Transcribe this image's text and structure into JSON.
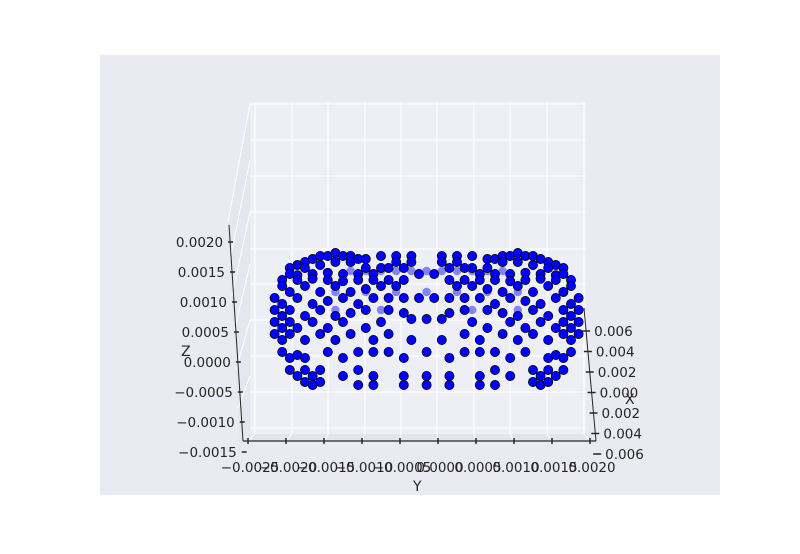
{
  "chart_data": {
    "type": "scatter",
    "projection": "3d",
    "title": "",
    "xlabel": "X",
    "ylabel": "Y",
    "zlabel": "Z",
    "x_ticks": [
      "0.006",
      "0.004",
      "0.002",
      "0.000",
      "0.002",
      "0.004",
      "0.006"
    ],
    "y_ticks": [
      "−0.0025",
      "−0.0020",
      "−0.0015",
      "−0.0010",
      "−0.0005",
      "0.0000",
      "0.0005",
      "0.0010",
      "0.0015",
      "0.0020"
    ],
    "z_ticks": [
      "−0.0015",
      "−0.0010",
      "−0.0005",
      "0.0000",
      "0.0005",
      "0.0010",
      "0.0015",
      "0.0020"
    ],
    "xlim": [
      -0.006,
      0.006
    ],
    "ylim": [
      -0.0025,
      0.002
    ],
    "zlim": [
      -0.0015,
      0.0022
    ],
    "grid": true,
    "background": "#eaeaf2",
    "marker_color": "#0000ff",
    "marker_edge": "#000000",
    "series": [
      {
        "points_yz": [
          [
            -0.0017,
            0.00165
          ],
          [
            -0.0016,
            0.0017
          ],
          [
            -0.0015,
            0.00175
          ],
          [
            -0.0014,
            0.0018
          ],
          [
            -0.0013,
            0.0018
          ],
          [
            -0.0012,
            0.00185
          ],
          [
            -0.0011,
            0.0018
          ],
          [
            -0.001,
            0.0018
          ],
          [
            -0.0009,
            0.00175
          ],
          [
            -0.0008,
            0.00175
          ],
          [
            -0.0006,
            0.0018
          ],
          [
            -0.0004,
            0.0018
          ],
          [
            -0.0002,
            0.0018
          ],
          [
            0.0002,
            0.0018
          ],
          [
            0.0004,
            0.0018
          ],
          [
            0.0006,
            0.0018
          ],
          [
            0.0008,
            0.00175
          ],
          [
            0.0009,
            0.00175
          ],
          [
            0.001,
            0.0018
          ],
          [
            0.0011,
            0.0018
          ],
          [
            0.0012,
            0.00185
          ],
          [
            0.0013,
            0.0018
          ],
          [
            0.0014,
            0.0018
          ],
          [
            0.0015,
            0.00175
          ],
          [
            0.0016,
            0.0017
          ],
          [
            0.0017,
            0.00165
          ],
          [
            -0.0018,
            0.0016
          ],
          [
            -0.0016,
            0.0016
          ],
          [
            -0.0014,
            0.00165
          ],
          [
            -0.0012,
            0.0017
          ],
          [
            -0.001,
            0.0017
          ],
          [
            -0.0008,
            0.0016
          ],
          [
            -0.0006,
            0.0016
          ],
          [
            -0.0004,
            0.0017
          ],
          [
            -0.0002,
            0.0017
          ],
          [
            0.0002,
            0.0017
          ],
          [
            0.0004,
            0.0017
          ],
          [
            0.0006,
            0.0016
          ],
          [
            0.0008,
            0.0016
          ],
          [
            0.001,
            0.0017
          ],
          [
            0.0012,
            0.0017
          ],
          [
            0.0014,
            0.00165
          ],
          [
            0.0016,
            0.0016
          ],
          [
            0.0018,
            0.0016
          ],
          [
            -0.0018,
            0.0015
          ],
          [
            -0.0017,
            0.00148
          ],
          [
            -0.0015,
            0.0015
          ],
          [
            -0.0013,
            0.00152
          ],
          [
            -0.0011,
            0.0015
          ],
          [
            -0.0009,
            0.0015
          ],
          [
            -0.0007,
            0.0015
          ],
          [
            -0.0005,
            0.0016
          ],
          [
            -0.0003,
            0.0016
          ],
          [
            0.0003,
            0.0016
          ],
          [
            0.0005,
            0.0016
          ],
          [
            0.0007,
            0.0015
          ],
          [
            0.0009,
            0.0015
          ],
          [
            0.0011,
            0.0015
          ],
          [
            0.0013,
            0.00152
          ],
          [
            0.0015,
            0.0015
          ],
          [
            0.0017,
            0.00148
          ],
          [
            0.0018,
            0.0015
          ],
          [
            -0.0019,
            0.0014
          ],
          [
            -0.0017,
            0.0014
          ],
          [
            -0.0015,
            0.00142
          ],
          [
            -0.0013,
            0.0014
          ],
          [
            -0.0011,
            0.00138
          ],
          [
            -0.0009,
            0.0014
          ],
          [
            -0.0007,
            0.0014
          ],
          [
            -0.0005,
            0.0014
          ],
          [
            -0.0003,
            0.0014
          ],
          [
            -0.0001,
            0.0015
          ],
          [
            0.0001,
            0.0015
          ],
          [
            0.0003,
            0.0014
          ],
          [
            0.0005,
            0.0014
          ],
          [
            0.0007,
            0.0014
          ],
          [
            0.0009,
            0.0014
          ],
          [
            0.0011,
            0.00138
          ],
          [
            0.0013,
            0.0014
          ],
          [
            0.0015,
            0.00142
          ],
          [
            0.0017,
            0.0014
          ],
          [
            0.0019,
            0.0014
          ],
          [
            -0.0019,
            0.0013
          ],
          [
            -0.0018,
            0.0012
          ],
          [
            -0.0016,
            0.0013
          ],
          [
            -0.0014,
            0.0012
          ],
          [
            -0.0012,
            0.0013
          ],
          [
            -0.001,
            0.0012
          ],
          [
            -0.0008,
            0.00125
          ],
          [
            -0.0006,
            0.0013
          ],
          [
            -0.0004,
            0.0013
          ],
          [
            0.0004,
            0.0013
          ],
          [
            0.0006,
            0.0013
          ],
          [
            0.0008,
            0.00125
          ],
          [
            0.001,
            0.0012
          ],
          [
            0.0012,
            0.0013
          ],
          [
            0.0014,
            0.0012
          ],
          [
            0.0016,
            0.0013
          ],
          [
            0.0018,
            0.0012
          ],
          [
            0.0019,
            0.0013
          ],
          [
            -0.002,
            0.0011
          ],
          [
            -0.0019,
            0.001
          ],
          [
            -0.0017,
            0.0011
          ],
          [
            -0.0015,
            0.001
          ],
          [
            -0.0013,
            0.00105
          ],
          [
            -0.0011,
            0.0011
          ],
          [
            -0.0009,
            0.001
          ],
          [
            -0.0007,
            0.0011
          ],
          [
            -0.0005,
            0.0011
          ],
          [
            -0.0003,
            0.0011
          ],
          [
            -0.0001,
            0.0011
          ],
          [
            0.0001,
            0.0011
          ],
          [
            0.0003,
            0.0011
          ],
          [
            0.0005,
            0.0011
          ],
          [
            0.0007,
            0.0011
          ],
          [
            0.0009,
            0.001
          ],
          [
            0.0011,
            0.0011
          ],
          [
            0.0013,
            0.00105
          ],
          [
            0.0015,
            0.001
          ],
          [
            0.0017,
            0.0011
          ],
          [
            0.0019,
            0.001
          ],
          [
            0.002,
            0.0011
          ],
          [
            -0.002,
            0.0009
          ],
          [
            -0.0019,
            0.0008
          ],
          [
            -0.0018,
            0.0009
          ],
          [
            -0.0016,
            0.0008
          ],
          [
            -0.0014,
            0.0009
          ],
          [
            -0.0012,
            0.0008
          ],
          [
            -0.001,
            0.00085
          ],
          [
            -0.0008,
            0.0009
          ],
          [
            -0.0005,
            0.0009
          ],
          [
            -0.0003,
            0.00085
          ],
          [
            0.0003,
            0.00085
          ],
          [
            0.0005,
            0.0009
          ],
          [
            0.0008,
            0.0009
          ],
          [
            0.001,
            0.00085
          ],
          [
            0.0012,
            0.0008
          ],
          [
            0.0014,
            0.0009
          ],
          [
            0.0016,
            0.0008
          ],
          [
            0.0018,
            0.0009
          ],
          [
            0.0019,
            0.0008
          ],
          [
            0.002,
            0.0009
          ],
          [
            -0.002,
            0.0007
          ],
          [
            -0.0019,
            0.0006
          ],
          [
            -0.0018,
            0.0007
          ],
          [
            -0.0017,
            0.0006
          ],
          [
            -0.0015,
            0.0007
          ],
          [
            -0.0013,
            0.0006
          ],
          [
            -0.0011,
            0.0007
          ],
          [
            -0.0008,
            0.0006
          ],
          [
            -0.0006,
            0.0007
          ],
          [
            -0.0002,
            0.00075
          ],
          [
            0.0,
            0.00075
          ],
          [
            0.0002,
            0.00075
          ],
          [
            0.0006,
            0.0007
          ],
          [
            0.0008,
            0.0006
          ],
          [
            0.0011,
            0.0007
          ],
          [
            0.0013,
            0.0006
          ],
          [
            0.0015,
            0.0007
          ],
          [
            0.0017,
            0.0006
          ],
          [
            0.0018,
            0.0007
          ],
          [
            0.0019,
            0.0006
          ],
          [
            0.002,
            0.0007
          ],
          [
            -0.002,
            0.0005
          ],
          [
            -0.0019,
            0.0004
          ],
          [
            -0.0018,
            0.0005
          ],
          [
            -0.0016,
            0.0004
          ],
          [
            -0.0014,
            0.0005
          ],
          [
            -0.0012,
            0.0004
          ],
          [
            -0.001,
            0.0005
          ],
          [
            -0.0007,
            0.0004
          ],
          [
            -0.0005,
            0.0005
          ],
          [
            -0.0002,
            0.0004
          ],
          [
            0.0002,
            0.0004
          ],
          [
            0.0005,
            0.0005
          ],
          [
            0.0007,
            0.0004
          ],
          [
            0.001,
            0.0005
          ],
          [
            0.0012,
            0.0004
          ],
          [
            0.0014,
            0.0005
          ],
          [
            0.0016,
            0.0004
          ],
          [
            0.0018,
            0.0005
          ],
          [
            0.0019,
            0.0004
          ],
          [
            0.002,
            0.0005
          ],
          [
            -0.0019,
            0.0002
          ],
          [
            -0.0018,
            0.0001
          ],
          [
            -0.0017,
            0.00015
          ],
          [
            -0.0016,
            0.0001
          ],
          [
            -0.0013,
            0.0002
          ],
          [
            -0.0011,
            0.0001
          ],
          [
            -0.0009,
            0.0002
          ],
          [
            -0.0007,
            0.0002
          ],
          [
            -0.0005,
            0.0002
          ],
          [
            -0.0003,
            0.0001
          ],
          [
            0.0,
            0.0002
          ],
          [
            0.0003,
            0.0001
          ],
          [
            0.0005,
            0.0002
          ],
          [
            0.0007,
            0.0002
          ],
          [
            0.0009,
            0.0002
          ],
          [
            0.0011,
            0.0001
          ],
          [
            0.0013,
            0.0002
          ],
          [
            0.0016,
            0.0001
          ],
          [
            0.0017,
            0.00015
          ],
          [
            0.0018,
            0.0001
          ],
          [
            0.0019,
            0.0002
          ],
          [
            -0.0018,
            -0.0001
          ],
          [
            -0.0017,
            -0.0002
          ],
          [
            -0.0016,
            -0.0001
          ],
          [
            -0.0015,
            -0.0002
          ],
          [
            -0.0014,
            -0.0001
          ],
          [
            -0.0011,
            -0.0002
          ],
          [
            -0.0009,
            -0.0001
          ],
          [
            -0.0007,
            -0.0002
          ],
          [
            -0.0003,
            -0.0002
          ],
          [
            0.0,
            -0.0002
          ],
          [
            0.0003,
            -0.0002
          ],
          [
            0.0007,
            -0.0002
          ],
          [
            0.0009,
            -0.0001
          ],
          [
            0.0011,
            -0.0002
          ],
          [
            0.0014,
            -0.0001
          ],
          [
            0.0015,
            -0.0002
          ],
          [
            0.0016,
            -0.0001
          ],
          [
            0.0017,
            -0.0002
          ],
          [
            0.0018,
            -0.0001
          ],
          [
            -0.0016,
            -0.0003
          ],
          [
            -0.0015,
            -0.00035
          ],
          [
            -0.0014,
            -0.0003
          ],
          [
            -0.0009,
            -0.00035
          ],
          [
            -0.0007,
            -0.00035
          ],
          [
            -0.0003,
            -0.00035
          ],
          [
            0.0,
            -0.00035
          ],
          [
            0.0003,
            -0.00035
          ],
          [
            0.0007,
            -0.00035
          ],
          [
            0.0009,
            -0.00035
          ],
          [
            0.0014,
            -0.0003
          ],
          [
            0.0015,
            -0.00035
          ],
          [
            0.0016,
            -0.0003
          ]
        ]
      },
      {
        "name": "",
        "points_yz_back": [
          [
            -0.001,
            0.00155
          ],
          [
            -0.0008,
            0.00155
          ],
          [
            -0.0006,
            0.00155
          ],
          [
            -0.0004,
            0.00155
          ],
          [
            -0.0002,
            0.00155
          ],
          [
            0.0,
            0.00155
          ],
          [
            0.0002,
            0.00155
          ],
          [
            0.0004,
            0.00155
          ],
          [
            0.0006,
            0.00155
          ],
          [
            0.0008,
            0.00155
          ],
          [
            0.001,
            0.00155
          ],
          [
            -0.0012,
            0.0012
          ],
          [
            -0.0008,
            0.0012
          ],
          [
            -0.0004,
            0.0012
          ],
          [
            0.0,
            0.0012
          ],
          [
            0.0004,
            0.0012
          ],
          [
            0.0008,
            0.0012
          ],
          [
            0.0012,
            0.0012
          ],
          [
            -0.0012,
            0.0009
          ],
          [
            -0.0006,
            0.0009
          ],
          [
            0.0006,
            0.0009
          ],
          [
            0.0012,
            0.0009
          ]
        ]
      }
    ]
  }
}
